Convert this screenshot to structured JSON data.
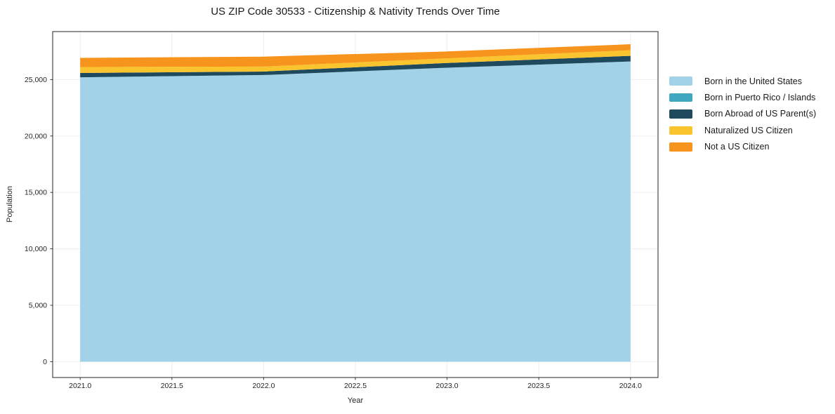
{
  "chart_data": {
    "type": "area",
    "stacked": true,
    "title": "US ZIP Code 30533 - Citizenship & Nativity Trends Over Time",
    "xlabel": "Year",
    "ylabel": "Population",
    "x": [
      2021,
      2022,
      2023,
      2024
    ],
    "series": [
      {
        "name": "Born in the United States",
        "color": "#a2d2e8",
        "values": [
          25200,
          25400,
          26050,
          26600
        ]
      },
      {
        "name": "Born in Puerto Rico / Islands",
        "color": "#3fa7bf",
        "values": [
          0,
          0,
          0,
          0
        ]
      },
      {
        "name": "Born Abroad of US Parent(s)",
        "color": "#1f4a5e",
        "values": [
          380,
          310,
          420,
          500
        ]
      },
      {
        "name": "Naturalized US Citizen",
        "color": "#fac42e",
        "values": [
          530,
          440,
          410,
          500
        ]
      },
      {
        "name": "Not a US Citizen",
        "color": "#f7941d",
        "values": [
          810,
          880,
          610,
          530
        ]
      }
    ],
    "xlim": [
      2020.85,
      2024.15
    ],
    "ylim": [
      -1400,
      29250
    ],
    "xticks": [
      2021.0,
      2021.5,
      2022.0,
      2022.5,
      2023.0,
      2023.5,
      2024.0
    ],
    "xtick_labels": [
      "2021.0",
      "2021.5",
      "2022.0",
      "2022.5",
      "2023.0",
      "2023.5",
      "2024.0"
    ],
    "yticks": [
      0,
      5000,
      10000,
      15000,
      20000,
      25000
    ],
    "ytick_labels": [
      "0",
      "5,000",
      "10,000",
      "15,000",
      "20,000",
      "25,000"
    ],
    "grid": true,
    "grid_color": "#ececec",
    "spine_color": "#262626",
    "tick_label_color": "#262626",
    "legend_position": "right"
  }
}
